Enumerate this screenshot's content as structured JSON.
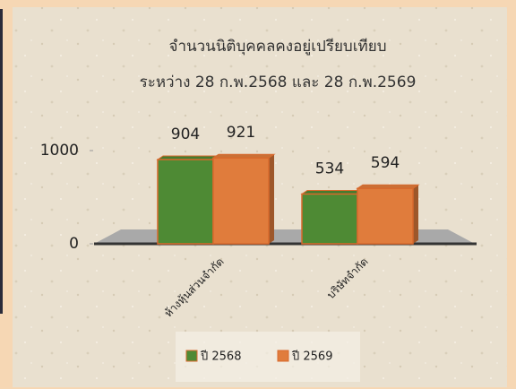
{
  "chart_data": {
    "type": "bar3d",
    "title": "จำนวนนิติบุคคลคงอยู่เปรียบเทียบ",
    "subtitle": "ระหว่าง  28  ก.พ.2568  และ  28  ก.พ.2569",
    "categories": [
      "ห้างหุ้นส่วนจำกัด",
      "บริษัทจำกัด"
    ],
    "series": [
      {
        "name": "ปี 2568",
        "color": "#4e8a34",
        "values": [
          904,
          534
        ]
      },
      {
        "name": "ปี 2569",
        "color": "#e07c3c",
        "values": [
          921,
          594
        ]
      }
    ],
    "ylim": [
      0,
      1000
    ],
    "yticks": [
      0,
      1000
    ],
    "legend": "bottom"
  }
}
